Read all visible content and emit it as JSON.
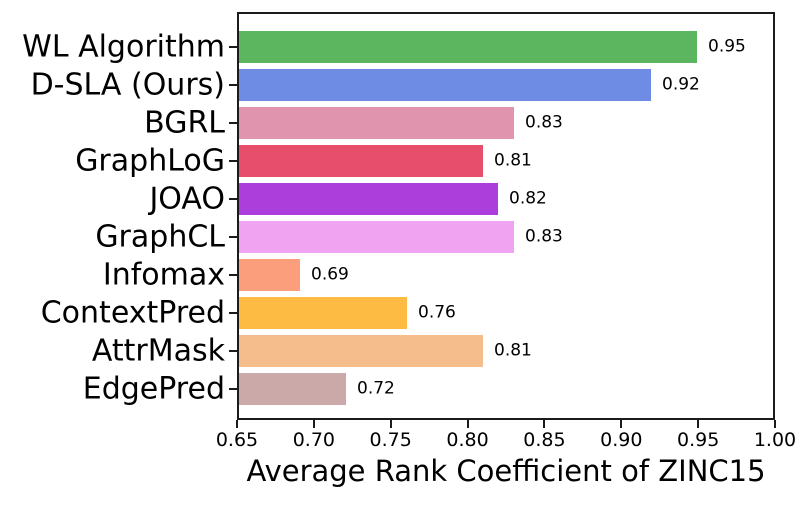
{
  "figure": {
    "background": "#ffffff",
    "spine_color": "#1b1b1b",
    "text_color": "#000000"
  },
  "chart_data": {
    "type": "bar",
    "orientation": "horizontal",
    "title": "",
    "xlabel": "Average Rank Coefficient of ZINC15",
    "ylabel": "",
    "categories": [
      "WL Algorithm",
      "D-SLA (Ours)",
      "BGRL",
      "GraphLoG",
      "JOAO",
      "GraphCL",
      "Infomax",
      "ContextPred",
      "AttrMask",
      "EdgePred"
    ],
    "values": [
      0.95,
      0.92,
      0.83,
      0.81,
      0.82,
      0.83,
      0.69,
      0.76,
      0.81,
      0.72
    ],
    "value_labels": [
      "0.95",
      "0.92",
      "0.83",
      "0.81",
      "0.82",
      "0.83",
      "0.69",
      "0.76",
      "0.81",
      "0.72"
    ],
    "bar_colors": [
      "#5cb55f",
      "#6f8ce5",
      "#e194ae",
      "#e64e6b",
      "#ac3edb",
      "#f0a3f0",
      "#fb9e7c",
      "#febb43",
      "#f6bd8c",
      "#cca9a9"
    ],
    "xlim": [
      0.65,
      1.0
    ],
    "xticks": [
      0.65,
      0.7,
      0.75,
      0.8,
      0.85,
      0.9,
      0.95,
      1.0
    ],
    "xtick_labels": [
      "0.65",
      "0.70",
      "0.75",
      "0.80",
      "0.85",
      "0.90",
      "0.95",
      "1.00"
    ],
    "grid": false,
    "legend": null
  }
}
